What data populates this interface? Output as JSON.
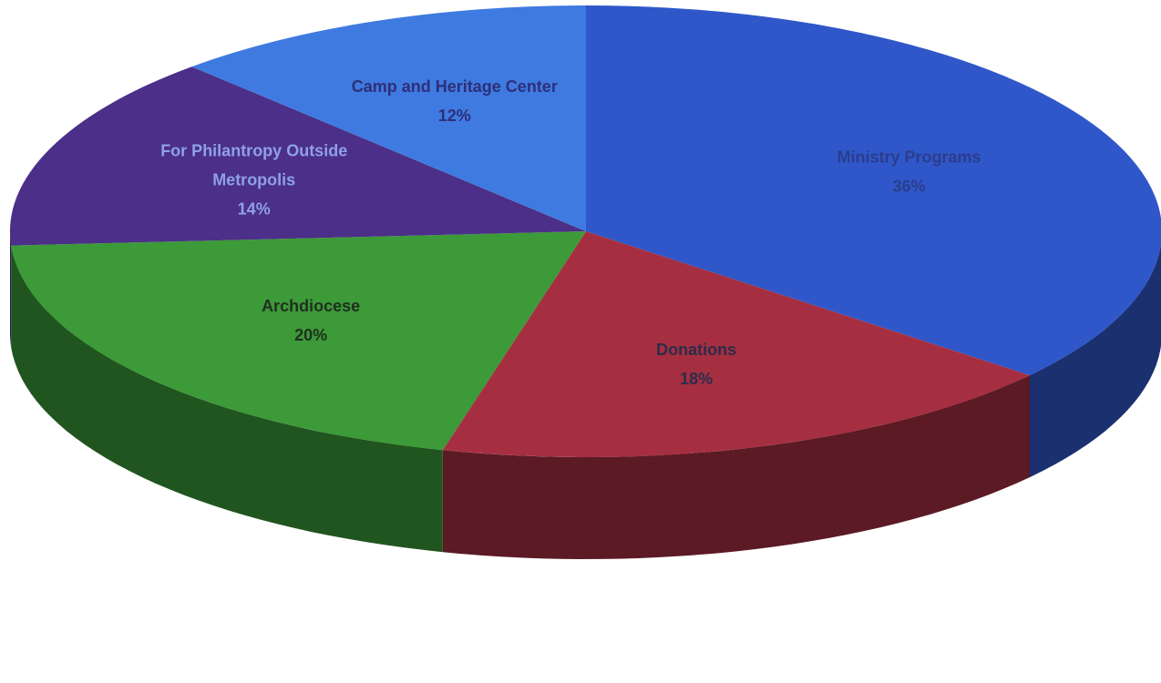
{
  "chart_data": {
    "type": "pie",
    "style": "3d",
    "series": [
      {
        "values": [
          36,
          18,
          20,
          14,
          12
        ],
        "labels": [
          "Ministry Programs",
          "Donations",
          "Archdiocese",
          "For Philantropy Outside Metropolis",
          "Camp and Heritage Center"
        ],
        "label_lines": [
          [
            "Ministry Programs"
          ],
          [
            "Donations"
          ],
          [
            "Archdiocese"
          ],
          [
            "For Philantropy Outside",
            "Metropolis"
          ],
          [
            "Camp and Heritage Center"
          ]
        ],
        "percent_labels": [
          "36%",
          "18%",
          "20%",
          "14%",
          "12%"
        ],
        "colors": [
          "#2f57c9",
          "#a52f41",
          "#3c9a38",
          "#4b2f88",
          "#3f7ae0"
        ],
        "label_colors": [
          "#2b3d8c",
          "#2c2c4a",
          "#1f2f1f",
          "#8fa0e6",
          "#2e2f7a"
        ]
      }
    ]
  }
}
